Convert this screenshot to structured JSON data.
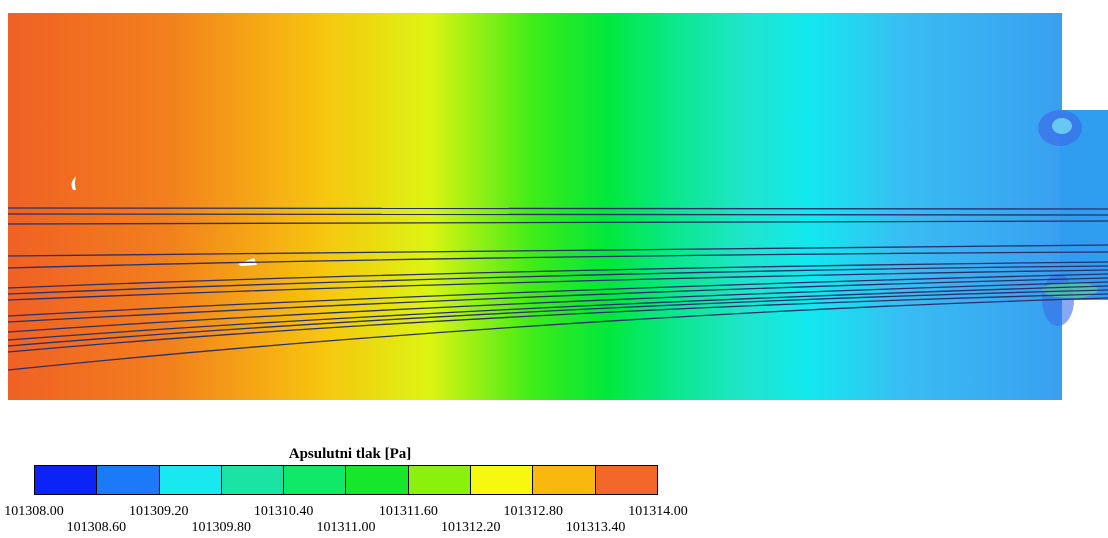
{
  "legend": {
    "title": "Apsulutni tlak [Pa]",
    "colors": [
      "#0b24f5",
      "#1a7af7",
      "#18e8f0",
      "#1be3a4",
      "#10e868",
      "#16e72a",
      "#8bf00c",
      "#f6f80f",
      "#f9b80e",
      "#f4672a"
    ],
    "ticks_top": [
      "101308.00",
      "101309.20",
      "101310.40",
      "101311.60",
      "101312.80",
      "101314.00"
    ],
    "ticks_bottom": [
      "101308.60",
      "101309.80",
      "101311.00",
      "101312.20",
      "101313.40"
    ]
  },
  "field": {
    "gradient_stops": [
      "#f06124",
      "#f27f1d",
      "#f7c60f",
      "#dcf412",
      "#3cec18",
      "#00e83c",
      "#0ae88a",
      "#1fe5cc",
      "#12e9ef",
      "#39bdf2",
      "#399ff1"
    ],
    "streamline_color": "#2b2f6a"
  }
}
